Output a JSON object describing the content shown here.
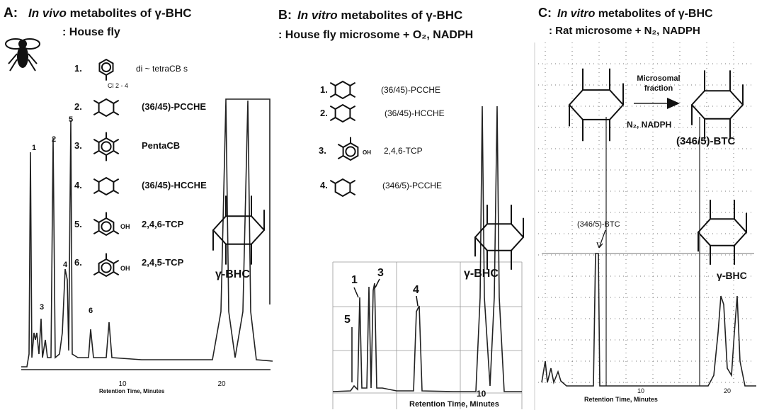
{
  "panels": [
    {
      "label": "A:",
      "title_italic": "In vivo",
      "title_rest": " metabolites of γ-BHC",
      "subtitle": ": House fly",
      "compounds": [
        {
          "number": "1.",
          "name": "di ~ tetraCB s"
        },
        {
          "number": "2.",
          "name": "(36/45)-PCCHE"
        },
        {
          "number": "3.",
          "name": "PentaCB"
        },
        {
          "number": "4.",
          "name": "(36/45)-HCCHE"
        },
        {
          "number": "5.",
          "name": "2,4,6-TCP"
        },
        {
          "number": "6.",
          "name": "2,4,5-TCP"
        }
      ],
      "substituent": "Cl 2 - 4",
      "hydroxyl": "OH",
      "peak_labels": [
        "1",
        "2",
        "3",
        "4",
        "5",
        "6"
      ],
      "structure_label": "γ-BHC",
      "x_ticks": [
        "10",
        "20"
      ],
      "x_label": "Retention Time, Minutes"
    },
    {
      "label": "B:",
      "title_italic": "In vitro",
      "title_rest": " metabolites of γ-BHC",
      "subtitle": ": House fly microsome + O₂, NADPH",
      "compounds": [
        {
          "number": "1.",
          "name": "(36/45)-PCCHE"
        },
        {
          "number": "2.",
          "name": "(36/45)-HCCHE"
        },
        {
          "number": "3.",
          "name": "2,4,6-TCP"
        },
        {
          "number": "4.",
          "name": "(346/5)-PCCHE"
        }
      ],
      "hydroxyl": "OH",
      "peak_labels": [
        "1",
        "3",
        "4",
        "5"
      ],
      "structure_label": "γ-BHC",
      "x_ticks": [
        "10"
      ],
      "x_label": "Retention Time, Minutes"
    },
    {
      "label": "C:",
      "title_italic": "In vitro",
      "title_rest": " metabolites of γ-BHC",
      "subtitle": ": Rat microsome + N₂, NADPH",
      "arrow_label": [
        "Microsomal",
        "fraction"
      ],
      "conditions": "N₂, NADPH",
      "product": "(346/5)-BTC",
      "peak_annotation": "(346/5)-BTC",
      "structure_label": "γ-BHC",
      "x_ticks": [
        "10",
        "20"
      ],
      "x_label": "Retention Time, Minutes"
    }
  ]
}
